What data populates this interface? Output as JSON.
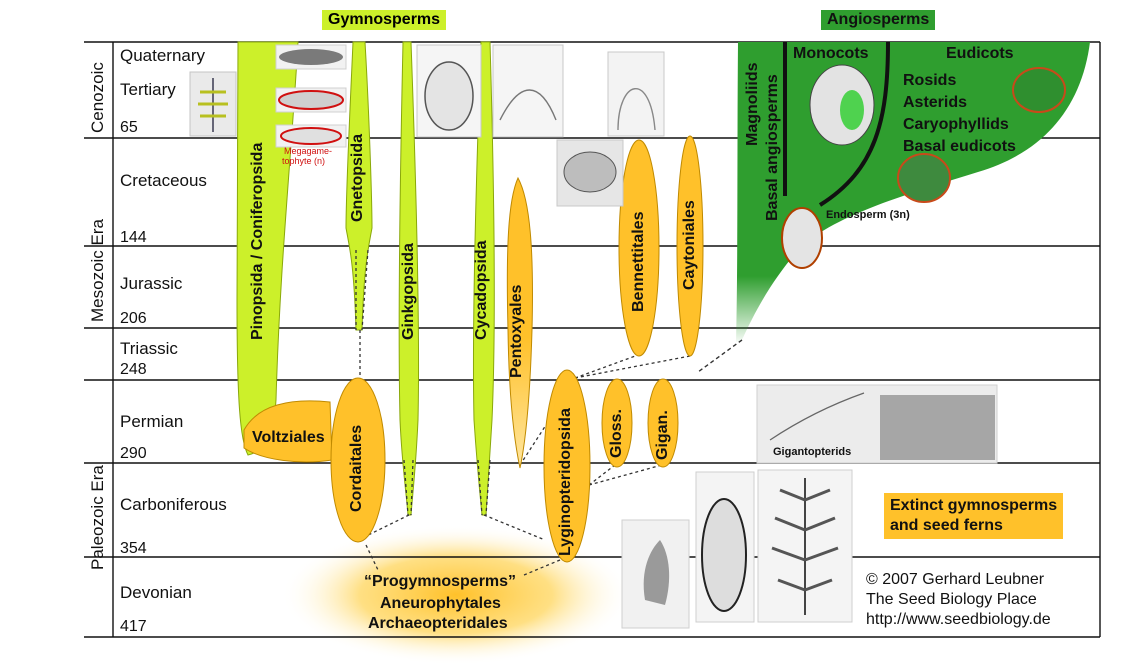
{
  "groups": {
    "gymnosperms": "Gymnosperms",
    "angiosperms": "Angiosperms"
  },
  "eras": {
    "cenozoic": "Cenozoic",
    "mesozoic": "Mesozoic Era",
    "paleozoic": "Paleozoic Era"
  },
  "periods": [
    {
      "name": "Quaternary",
      "mya": ""
    },
    {
      "name": "Tertiary",
      "mya": "65"
    },
    {
      "name": "Cretaceous",
      "mya": "144"
    },
    {
      "name": "Jurassic",
      "mya": "206"
    },
    {
      "name": "Triassic",
      "mya": "248"
    },
    {
      "name": "Permian",
      "mya": "290"
    },
    {
      "name": "Carboniferous",
      "mya": "354"
    },
    {
      "name": "Devonian",
      "mya": "417"
    }
  ],
  "lineages": {
    "pinopsida": "Pinopsida / Coniferopsida",
    "gnetopsida": "Gnetopsida",
    "ginkgopsida": "Ginkgopsida",
    "cycadopsida": "Cycadopsida",
    "pentoxyales": "Pentoxyales",
    "bennettitales": "Bennettitales",
    "caytoniales": "Caytoniales",
    "voltziales": "Voltziales",
    "cordaitales": "Cordaitales",
    "lyginopteridopsida": "Lyginopteridopsida",
    "gloss": "Gloss.",
    "gigan": "Gigan."
  },
  "angiosperm_labels": {
    "magnoliids": "Magnoliids",
    "basal_angiosperms": "Basal angiosperms",
    "monocots": "Monocots",
    "eudicots": "Eudicots",
    "rosids": "Rosids",
    "asterids": "Asterids",
    "caryophyllids": "Caryophyllids",
    "basal_eudicots": "Basal eudicots",
    "endosperm": "Endosperm (3n)"
  },
  "annotations": {
    "megagametophyte_line1": "Megagame-",
    "megagametophyte_line2": "tophyte (n)",
    "gigantopterids": "Gigantopterids"
  },
  "progymnosperms": {
    "line1": "“Progymnosperms”",
    "line2": "Aneurophytales",
    "line3": "Archaeopteridales"
  },
  "legend": {
    "extinct_line1": "Extinct gymnosperms",
    "extinct_line2": "and seed ferns"
  },
  "credit": {
    "line1": "© 2007 Gerhard Leubner",
    "line2": "The Seed Biology Place",
    "line3": "http://www.seedbiology.de"
  },
  "colors": {
    "gymnosperm_lime": "#ccf02a",
    "extinct_orange": "#ffc12a",
    "angiosperm_green": "#2f9e2f"
  }
}
